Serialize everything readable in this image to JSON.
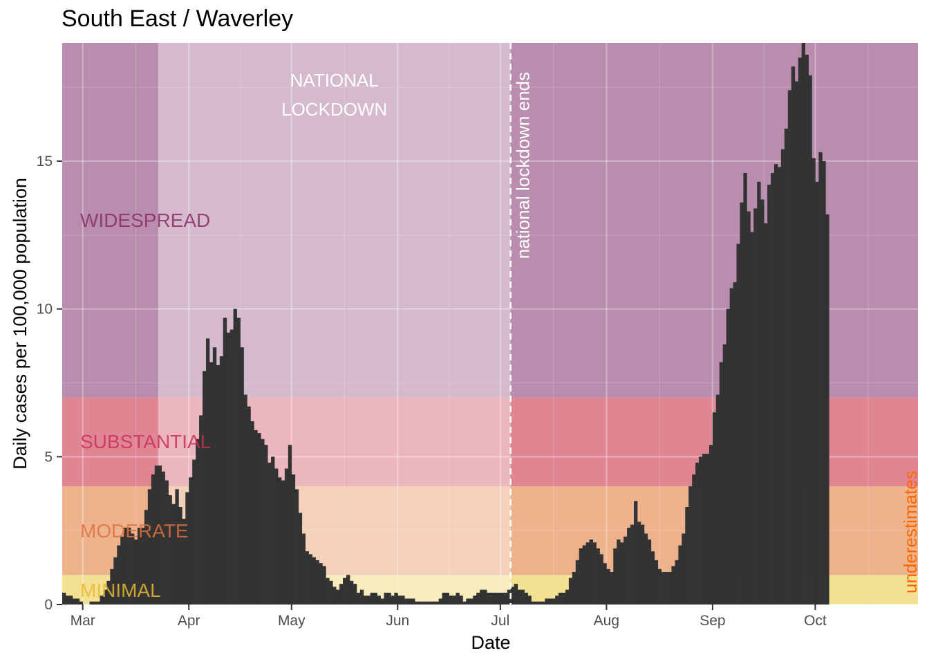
{
  "chart_data": {
    "type": "bar",
    "title": "South East / Waverley",
    "xlabel": "Date",
    "ylabel": "Daily cases per 100,000 population",
    "xlim": [
      "2020-02-24",
      "2020-10-31"
    ],
    "ylim": [
      0,
      19.0
    ],
    "x_ticks": [
      {
        "label": "Mar",
        "date": "2020-03-01"
      },
      {
        "label": "Apr",
        "date": "2020-04-01"
      },
      {
        "label": "May",
        "date": "2020-05-01"
      },
      {
        "label": "Jun",
        "date": "2020-06-01"
      },
      {
        "label": "Jul",
        "date": "2020-07-01"
      },
      {
        "label": "Aug",
        "date": "2020-08-01"
      },
      {
        "label": "Sep",
        "date": "2020-09-01"
      },
      {
        "label": "Oct",
        "date": "2020-10-01"
      }
    ],
    "y_ticks": [
      0,
      5,
      10,
      15
    ],
    "grid": true,
    "bands": [
      {
        "label": "MINIMAL",
        "from": 0,
        "to": 1,
        "color": "#F0D878"
      },
      {
        "label": "MODERATE",
        "from": 1,
        "to": 4,
        "color": "#E8A070"
      },
      {
        "label": "SUBSTANTIAL",
        "from": 4,
        "to": 7,
        "color": "#D86878"
      },
      {
        "label": "WIDESPREAD",
        "from": 7,
        "to": 19.0,
        "color": "#A87098"
      }
    ],
    "band_label_colors": [
      "#E8B830",
      "#E07040",
      "#C83058",
      "#8A2E66"
    ],
    "lockdown": {
      "label": "NATIONAL LOCKDOWN",
      "start": "2020-03-23",
      "end": "2020-07-04",
      "color": "#FFFFFF"
    },
    "lockdown_end_label": "national lockdown ends",
    "underestimate_label": "underestimates",
    "underestimate_color": "#FF6600",
    "bar_color": "#333333",
    "start_date": "2020-02-24",
    "values": [
      0.4,
      0.3,
      0.3,
      0.2,
      0.2,
      0.1,
      0,
      0,
      0.1,
      0.1,
      0.1,
      0.3,
      0.5,
      0.8,
      1.2,
      1.6,
      2,
      2.3,
      2.6,
      2.6,
      2.4,
      2.2,
      2.6,
      2.6,
      3.2,
      3.9,
      4.4,
      4.7,
      4.7,
      4.5,
      4.2,
      3.7,
      3.4,
      3.9,
      3.3,
      2.9,
      3.8,
      4.3,
      4.9,
      5.6,
      6.4,
      7.9,
      9,
      8.2,
      8.7,
      8.1,
      8.4,
      9.7,
      9.2,
      9.3,
      10,
      9.7,
      8.7,
      7.1,
      6.7,
      6.2,
      5.9,
      5.8,
      5.6,
      5.4,
      4.8,
      5,
      4.6,
      4.3,
      4.2,
      4.6,
      5.4,
      4.4,
      3.9,
      3.1,
      2.4,
      1.8,
      1.7,
      1.6,
      1.5,
      1.4,
      1.3,
      0.9,
      0.8,
      0.6,
      0.5,
      0.7,
      0.9,
      1,
      0.8,
      0.7,
      0.4,
      0.5,
      0.3,
      0.3,
      0.4,
      0.4,
      0.3,
      0.2,
      0.4,
      0.4,
      0.3,
      0.4,
      0.3,
      0.3,
      0.2,
      0.2,
      0.2,
      0.1,
      0.1,
      0.1,
      0.1,
      0.1,
      0.1,
      0.1,
      0.2,
      0.4,
      0.4,
      0.3,
      0.3,
      0.4,
      0.3,
      0.1,
      0.2,
      0.2,
      0.3,
      0.4,
      0.5,
      0.5,
      0.4,
      0.4,
      0.4,
      0.4,
      0.4,
      0.4,
      0.5,
      0.6,
      0.7,
      0.5,
      0.5,
      0.4,
      0.3,
      0.1,
      0.1,
      0.1,
      0.1,
      0.2,
      0.2,
      0.2,
      0.3,
      0.4,
      0.4,
      0.5,
      0.9,
      1.1,
      1.5,
      1.9,
      2,
      2.1,
      2.2,
      2.1,
      1.9,
      1.7,
      1.4,
      1.2,
      1.1,
      1.9,
      2.2,
      2.1,
      2.3,
      2.6,
      2.7,
      3.5,
      2.8,
      2.7,
      2.4,
      2.2,
      1.8,
      1.5,
      1.2,
      1.1,
      1.1,
      1.1,
      1.3,
      1.5,
      2,
      2.4,
      3.3,
      4,
      4.4,
      4.8,
      5,
      5.1,
      5.1,
      5.4,
      6.5,
      7.1,
      8.2,
      8.8,
      10,
      10.7,
      10.9,
      12.2,
      13.6,
      14.6,
      13.3,
      12.6,
      13.4,
      14.3,
      13.7,
      12.9,
      14.2,
      14.6,
      14.9,
      14.8,
      15.4,
      16.1,
      17.4,
      18.2,
      17.7,
      18.5,
      19.0,
      18.6,
      17.9,
      15.1,
      14.3,
      15.3,
      15.0,
      13.2
    ]
  }
}
